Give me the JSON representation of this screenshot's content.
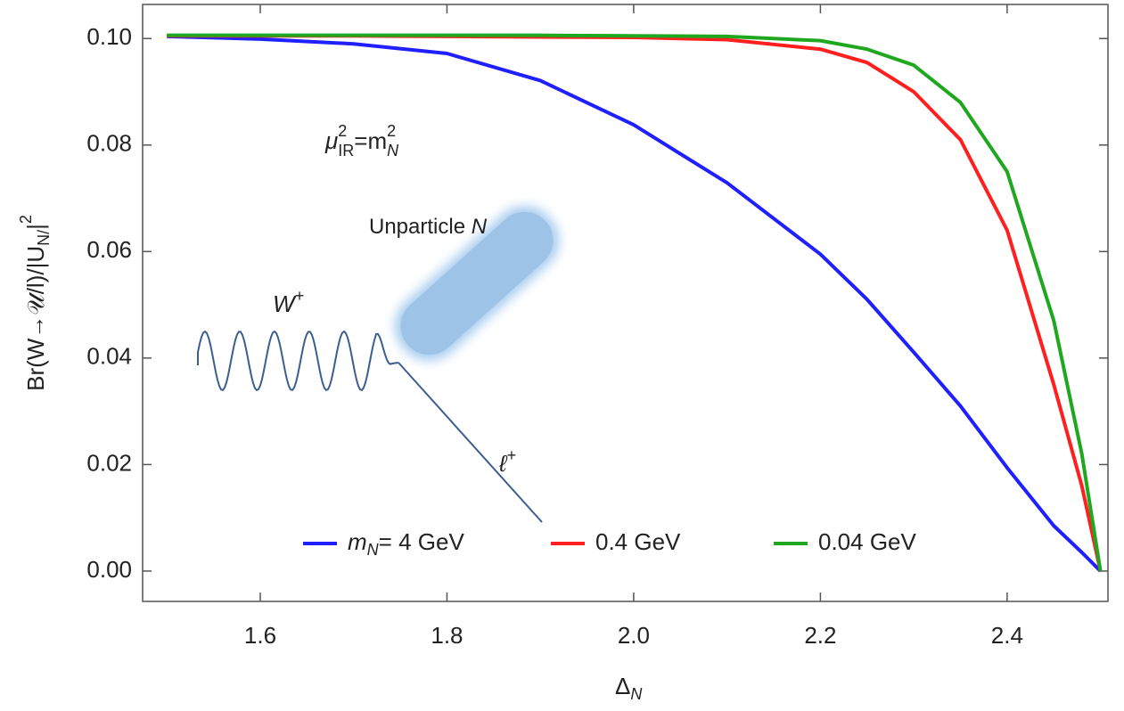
{
  "chart_data": {
    "type": "line",
    "x_label": [
      "Δ",
      "N"
    ],
    "y_label": [
      "Br(W→𝒰/l)/|U",
      "N/",
      "|",
      "2"
    ],
    "annotation": [
      "μ",
      "2",
      "IR",
      "=m",
      "2",
      "N"
    ],
    "diagram": {
      "boson": [
        "W",
        "+"
      ],
      "unparticle": [
        "Unparticle",
        "N"
      ],
      "lepton": [
        "ℓ",
        "+"
      ]
    },
    "x": [
      1.5,
      1.6,
      1.7,
      1.8,
      1.9,
      2.0,
      2.1,
      2.2,
      2.25,
      2.3,
      2.35,
      2.4,
      2.45,
      2.48,
      2.5
    ],
    "series": [
      {
        "name": [
          "m",
          "N",
          "= 4 GeV"
        ],
        "color": "#1f1fff",
        "values": [
          0.1004,
          0.0999,
          0.099,
          0.0972,
          0.0921,
          0.0838,
          0.0729,
          0.0595,
          0.051,
          0.0411,
          0.031,
          0.0194,
          0.0085,
          0.0035,
          0
        ]
      },
      {
        "name": "0.4 GeV",
        "color": "#ff1f1f",
        "values": [
          0.1005,
          0.1005,
          0.1005,
          0.1004,
          0.1003,
          0.1002,
          0.0998,
          0.098,
          0.0955,
          0.09,
          0.081,
          0.064,
          0.035,
          0.016,
          0
        ]
      },
      {
        "name": "0.04 GeV",
        "color": "#1fa81f",
        "values": [
          0.1006,
          0.1006,
          0.1006,
          0.1006,
          0.1006,
          0.1005,
          0.1004,
          0.0996,
          0.098,
          0.095,
          0.088,
          0.075,
          0.047,
          0.022,
          0
        ]
      }
    ],
    "xlim": [
      1.474,
      2.508
    ],
    "ylim": [
      -0.0057,
      0.1064
    ],
    "xticks": [
      1.6,
      1.8,
      {
        "value": 2,
        "label": "2.0"
      },
      2.2,
      2.4
    ],
    "yticks": [
      {
        "value": 0,
        "label": "0.00"
      },
      {
        "value": 0.02,
        "label": "0.02"
      },
      {
        "value": 0.04,
        "label": "0.04"
      },
      {
        "value": 0.06,
        "label": "0.06"
      },
      {
        "value": 0.08,
        "label": "0.08"
      },
      {
        "value": 0.1,
        "label": "0.10"
      }
    ],
    "grid": false
  }
}
